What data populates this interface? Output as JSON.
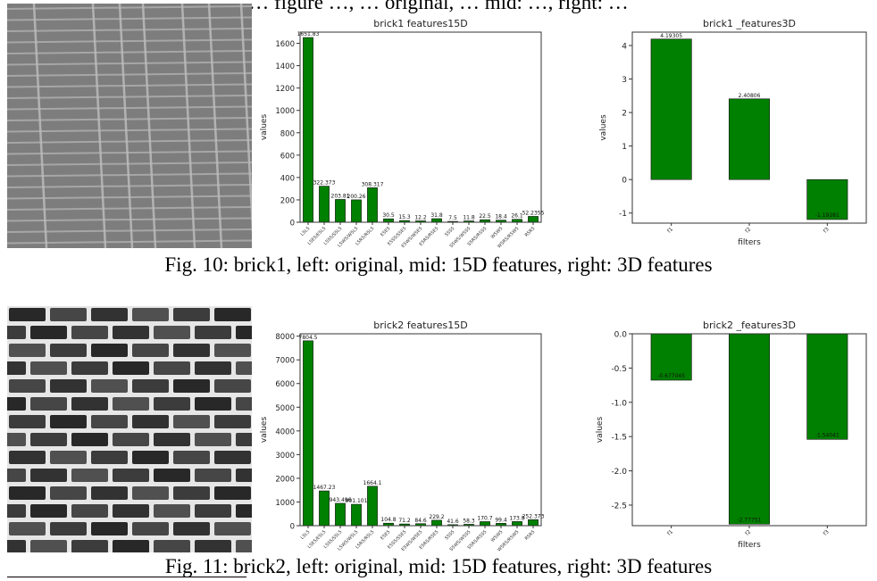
{
  "top_fragment": "… figure …, … original, … mid: …, right: …",
  "figures": [
    {
      "id": "fig10",
      "caption": "Fig. 10: brick1, left: original, mid: 15D features, right: 3D features",
      "texture": "brick1",
      "chart_15d": {
        "type": "bar",
        "title": "brick1 features15D",
        "ylabel": "values",
        "xlabel": "",
        "ylim": [
          0,
          1700
        ],
        "yticks": [
          0,
          200,
          400,
          600,
          800,
          1000,
          1200,
          1400,
          1600
        ],
        "categories": [
          "L5L5",
          "L5E5/E5L5",
          "L5S5/S5L5",
          "L5W5/W5L5",
          "L5R5/R5L5",
          "E5E5",
          "E5S5/S5E5",
          "E5W5/W5E5",
          "E5R5/R5E5",
          "S5S5",
          "S5W5/W5S5",
          "S5R5/R5S5",
          "W5W5",
          "W5R5/R5W5",
          "R5R5"
        ],
        "values": [
          1651.83,
          322.373,
          203.81,
          200.26,
          308.317,
          30.5,
          15.3,
          12.2,
          31.8,
          7.5,
          11.8,
          22.5,
          18.4,
          26.1,
          52.2355
        ],
        "data_labels": [
          "1651.83",
          "322.373",
          "203.81",
          "200.26",
          "308.317",
          "30.5",
          "15.3",
          "12.2",
          "31.8",
          "7.5",
          "11.8",
          "22.5",
          "18.4",
          "26.1",
          "52.2355"
        ],
        "bar_color": "#008000"
      },
      "chart_3d": {
        "type": "bar",
        "title": "brick1 _features3D",
        "ylabel": "values",
        "xlabel": "filters",
        "ylim": [
          -1.3,
          4.4
        ],
        "yticks": [
          -1,
          0,
          1,
          2,
          3,
          4
        ],
        "categories": [
          "f1",
          "f2",
          "f3"
        ],
        "values": [
          4.19305,
          2.40806,
          -1.19281
        ],
        "data_labels": [
          "4.19305",
          "2.40806",
          "-1.19281"
        ],
        "bar_color": "#008000"
      }
    },
    {
      "id": "fig11",
      "caption": "Fig. 11: brick2, left: original, mid: 15D features, right: 3D features",
      "texture": "brick2",
      "chart_15d": {
        "type": "bar",
        "title": "brick2 features15D",
        "ylabel": "values",
        "xlabel": "",
        "ylim": [
          0,
          8100
        ],
        "yticks": [
          0,
          1000,
          2000,
          3000,
          4000,
          5000,
          6000,
          7000,
          8000
        ],
        "categories": [
          "L5L5",
          "L5E5/E5L5",
          "L5S5/S5L5",
          "L5W5/W5L5",
          "L5R5/R5L5",
          "E5E5",
          "E5S5/S5E5",
          "E5W5/W5E5",
          "E5R5/R5E5",
          "S5S5",
          "S5W5/W5S5",
          "S5R5/R5S5",
          "W5W5",
          "W5R5/R5W5",
          "R5R5"
        ],
        "values": [
          7804.5,
          1467.23,
          943.496,
          901.101,
          1664.1,
          104.8,
          71.2,
          84.6,
          229.2,
          41.6,
          58.3,
          170.7,
          99.4,
          173.8,
          252.373
        ],
        "data_labels": [
          "7804.5",
          "1467.23",
          "943.496",
          "901.101",
          "1664.1",
          "104.8",
          "71.2",
          "84.6",
          "229.2",
          "41.6",
          "58.3",
          "170.7",
          "99.4",
          "173.8",
          "252.373"
        ],
        "bar_color": "#008000"
      },
      "chart_3d": {
        "type": "bar",
        "title": "brick2 _features3D",
        "ylabel": "values",
        "xlabel": "filters",
        "ylim": [
          -2.8,
          0.0
        ],
        "yticks": [
          0.0,
          -0.5,
          -1.0,
          -1.5,
          -2.0,
          -2.5
        ],
        "categories": [
          "f1",
          "f2",
          "f3"
        ],
        "values": [
          -0.677045,
          -2.77751,
          -1.54041
        ],
        "data_labels": [
          "-0.677045",
          "-2.77751",
          "-1.54041"
        ],
        "bar_color": "#008000"
      }
    }
  ]
}
